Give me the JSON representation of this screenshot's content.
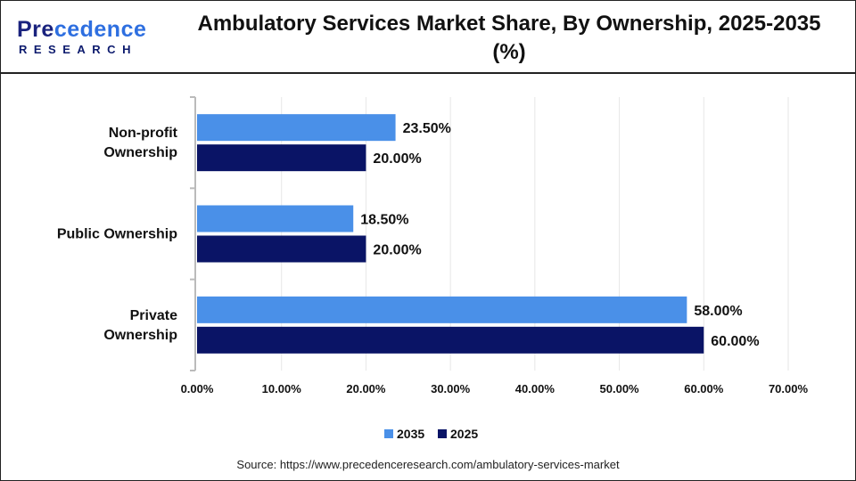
{
  "logo": {
    "text": "Precedence",
    "subtext": "RESEARCH"
  },
  "title": "Ambulatory Services Market Share, By Ownership, 2025-2035 (%)",
  "source": "Source: https://www.precedenceresearch.com/ambulatory-services-market",
  "chart_data": {
    "type": "bar",
    "orientation": "horizontal",
    "title": "Ambulatory Services Market Share, By Ownership, 2025-2035 (%)",
    "categories": [
      "Non-profit Ownership",
      "Public Ownership",
      "Private Ownership"
    ],
    "category_lines": [
      [
        "Non-profit",
        "Ownership"
      ],
      [
        "Public Ownership"
      ],
      [
        "Private",
        "Ownership"
      ]
    ],
    "series": [
      {
        "name": "2035",
        "values": [
          23.5,
          18.5,
          58.0
        ],
        "labels": [
          "23.50%",
          "18.50%",
          "58.00%"
        ],
        "color": "#4a90e8"
      },
      {
        "name": "2025",
        "values": [
          20.0,
          20.0,
          60.0
        ],
        "labels": [
          "20.00%",
          "20.00%",
          "60.00%"
        ],
        "color": "#0a1466"
      }
    ],
    "xlim": [
      0,
      70
    ],
    "xticks": [
      0,
      10,
      20,
      30,
      40,
      50,
      60,
      70
    ],
    "xtick_labels": [
      "0.00%",
      "10.00%",
      "20.00%",
      "30.00%",
      "40.00%",
      "50.00%",
      "60.00%",
      "70.00%"
    ],
    "grid": true,
    "legend": "bottom"
  }
}
